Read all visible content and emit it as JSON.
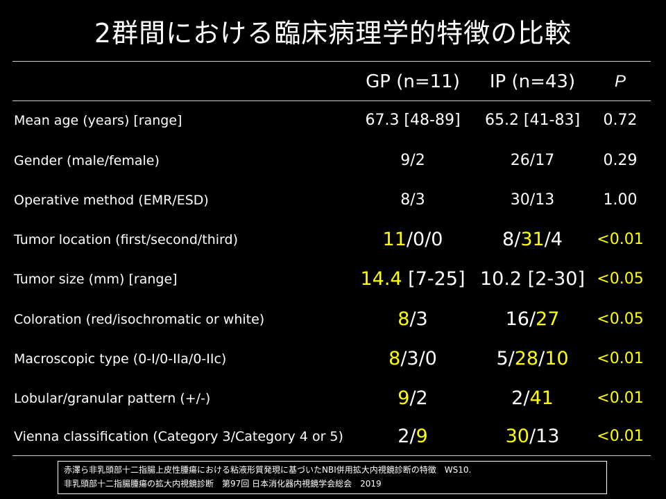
{
  "title": "2群間における臨床病理学的特徴の比較",
  "colors": {
    "background": "#000000",
    "text": "#ffffff",
    "highlight": "#ffff00"
  },
  "columns": [
    "GP (n=11)",
    "IP (n=43)",
    "P"
  ],
  "rows": [
    {
      "label": "Mean age (years) [range]",
      "gp": [
        {
          "t": "67.3 [48-89]",
          "hl": false
        }
      ],
      "ip": [
        {
          "t": "65.2 [41-83]",
          "hl": false
        }
      ],
      "p": "0.72",
      "p_hl": false,
      "size": "sm"
    },
    {
      "label": "Gender (male/female)",
      "gp": [
        {
          "t": "9/2",
          "hl": false
        }
      ],
      "ip": [
        {
          "t": "26/17",
          "hl": false
        }
      ],
      "p": "0.29",
      "p_hl": false,
      "size": "sm"
    },
    {
      "label": "Operative method (EMR/ESD)",
      "gp": [
        {
          "t": "8/3",
          "hl": false
        }
      ],
      "ip": [
        {
          "t": "30/13",
          "hl": false
        }
      ],
      "p": "1.00",
      "p_hl": false,
      "size": "sm"
    },
    {
      "label": "Tumor location (first/second/third)",
      "gp": [
        {
          "t": "11",
          "hl": true
        },
        {
          "t": "/0/0",
          "hl": false
        }
      ],
      "ip": [
        {
          "t": "8/",
          "hl": false
        },
        {
          "t": "31",
          "hl": true
        },
        {
          "t": "/4",
          "hl": false
        }
      ],
      "p": "<0.01",
      "p_hl": true,
      "size": "lg"
    },
    {
      "label": "Tumor size (mm)  [range]",
      "gp": [
        {
          "t": "14.4",
          "hl": true
        },
        {
          "t": " [7-25]",
          "hl": false
        }
      ],
      "ip": [
        {
          "t": "10.2 [2-30]",
          "hl": false
        }
      ],
      "p": "<0.05",
      "p_hl": true,
      "size": "lg"
    },
    {
      "label": "Coloration  (red/isochromatic or white)",
      "gp": [
        {
          "t": "8",
          "hl": true
        },
        {
          "t": "/3",
          "hl": false
        }
      ],
      "ip": [
        {
          "t": "16/",
          "hl": false
        },
        {
          "t": "27",
          "hl": true
        }
      ],
      "p": "<0.05",
      "p_hl": true,
      "size": "lg"
    },
    {
      "label": "Macroscopic type (0-I/0-IIa/0-IIc)",
      "gp": [
        {
          "t": "8",
          "hl": true
        },
        {
          "t": "/3/0",
          "hl": false
        }
      ],
      "ip": [
        {
          "t": "5/",
          "hl": false
        },
        {
          "t": "28",
          "hl": true
        },
        {
          "t": "/",
          "hl": false
        },
        {
          "t": "10",
          "hl": true
        }
      ],
      "p": "<0.01",
      "p_hl": true,
      "size": "lg"
    },
    {
      "label": "Lobular/granular pattern (+/-)",
      "gp": [
        {
          "t": "9",
          "hl": true
        },
        {
          "t": "/2",
          "hl": false
        }
      ],
      "ip": [
        {
          "t": "2/",
          "hl": false
        },
        {
          "t": "41",
          "hl": true
        }
      ],
      "p": "<0.01",
      "p_hl": true,
      "size": "lg"
    },
    {
      "label": "Vienna classification (Category 3/Category 4 or 5)",
      "gp": [
        {
          "t": "2/",
          "hl": false
        },
        {
          "t": "9",
          "hl": true
        }
      ],
      "ip": [
        {
          "t": "30",
          "hl": true
        },
        {
          "t": "/13",
          "hl": false
        }
      ],
      "p": "<0.01",
      "p_hl": true,
      "size": "lg"
    }
  ],
  "footer": {
    "line1": "赤澤ら非乳頭部十二指腸上皮性腫瘍における粘液形質発現に基づいたNBI併用拡大内視鏡診断の特徴　WS10.",
    "line2": "非乳頭部十二指腸腫瘍の拡大内視鏡診断　第97回 日本消化器内視鏡学会総会　2019"
  }
}
